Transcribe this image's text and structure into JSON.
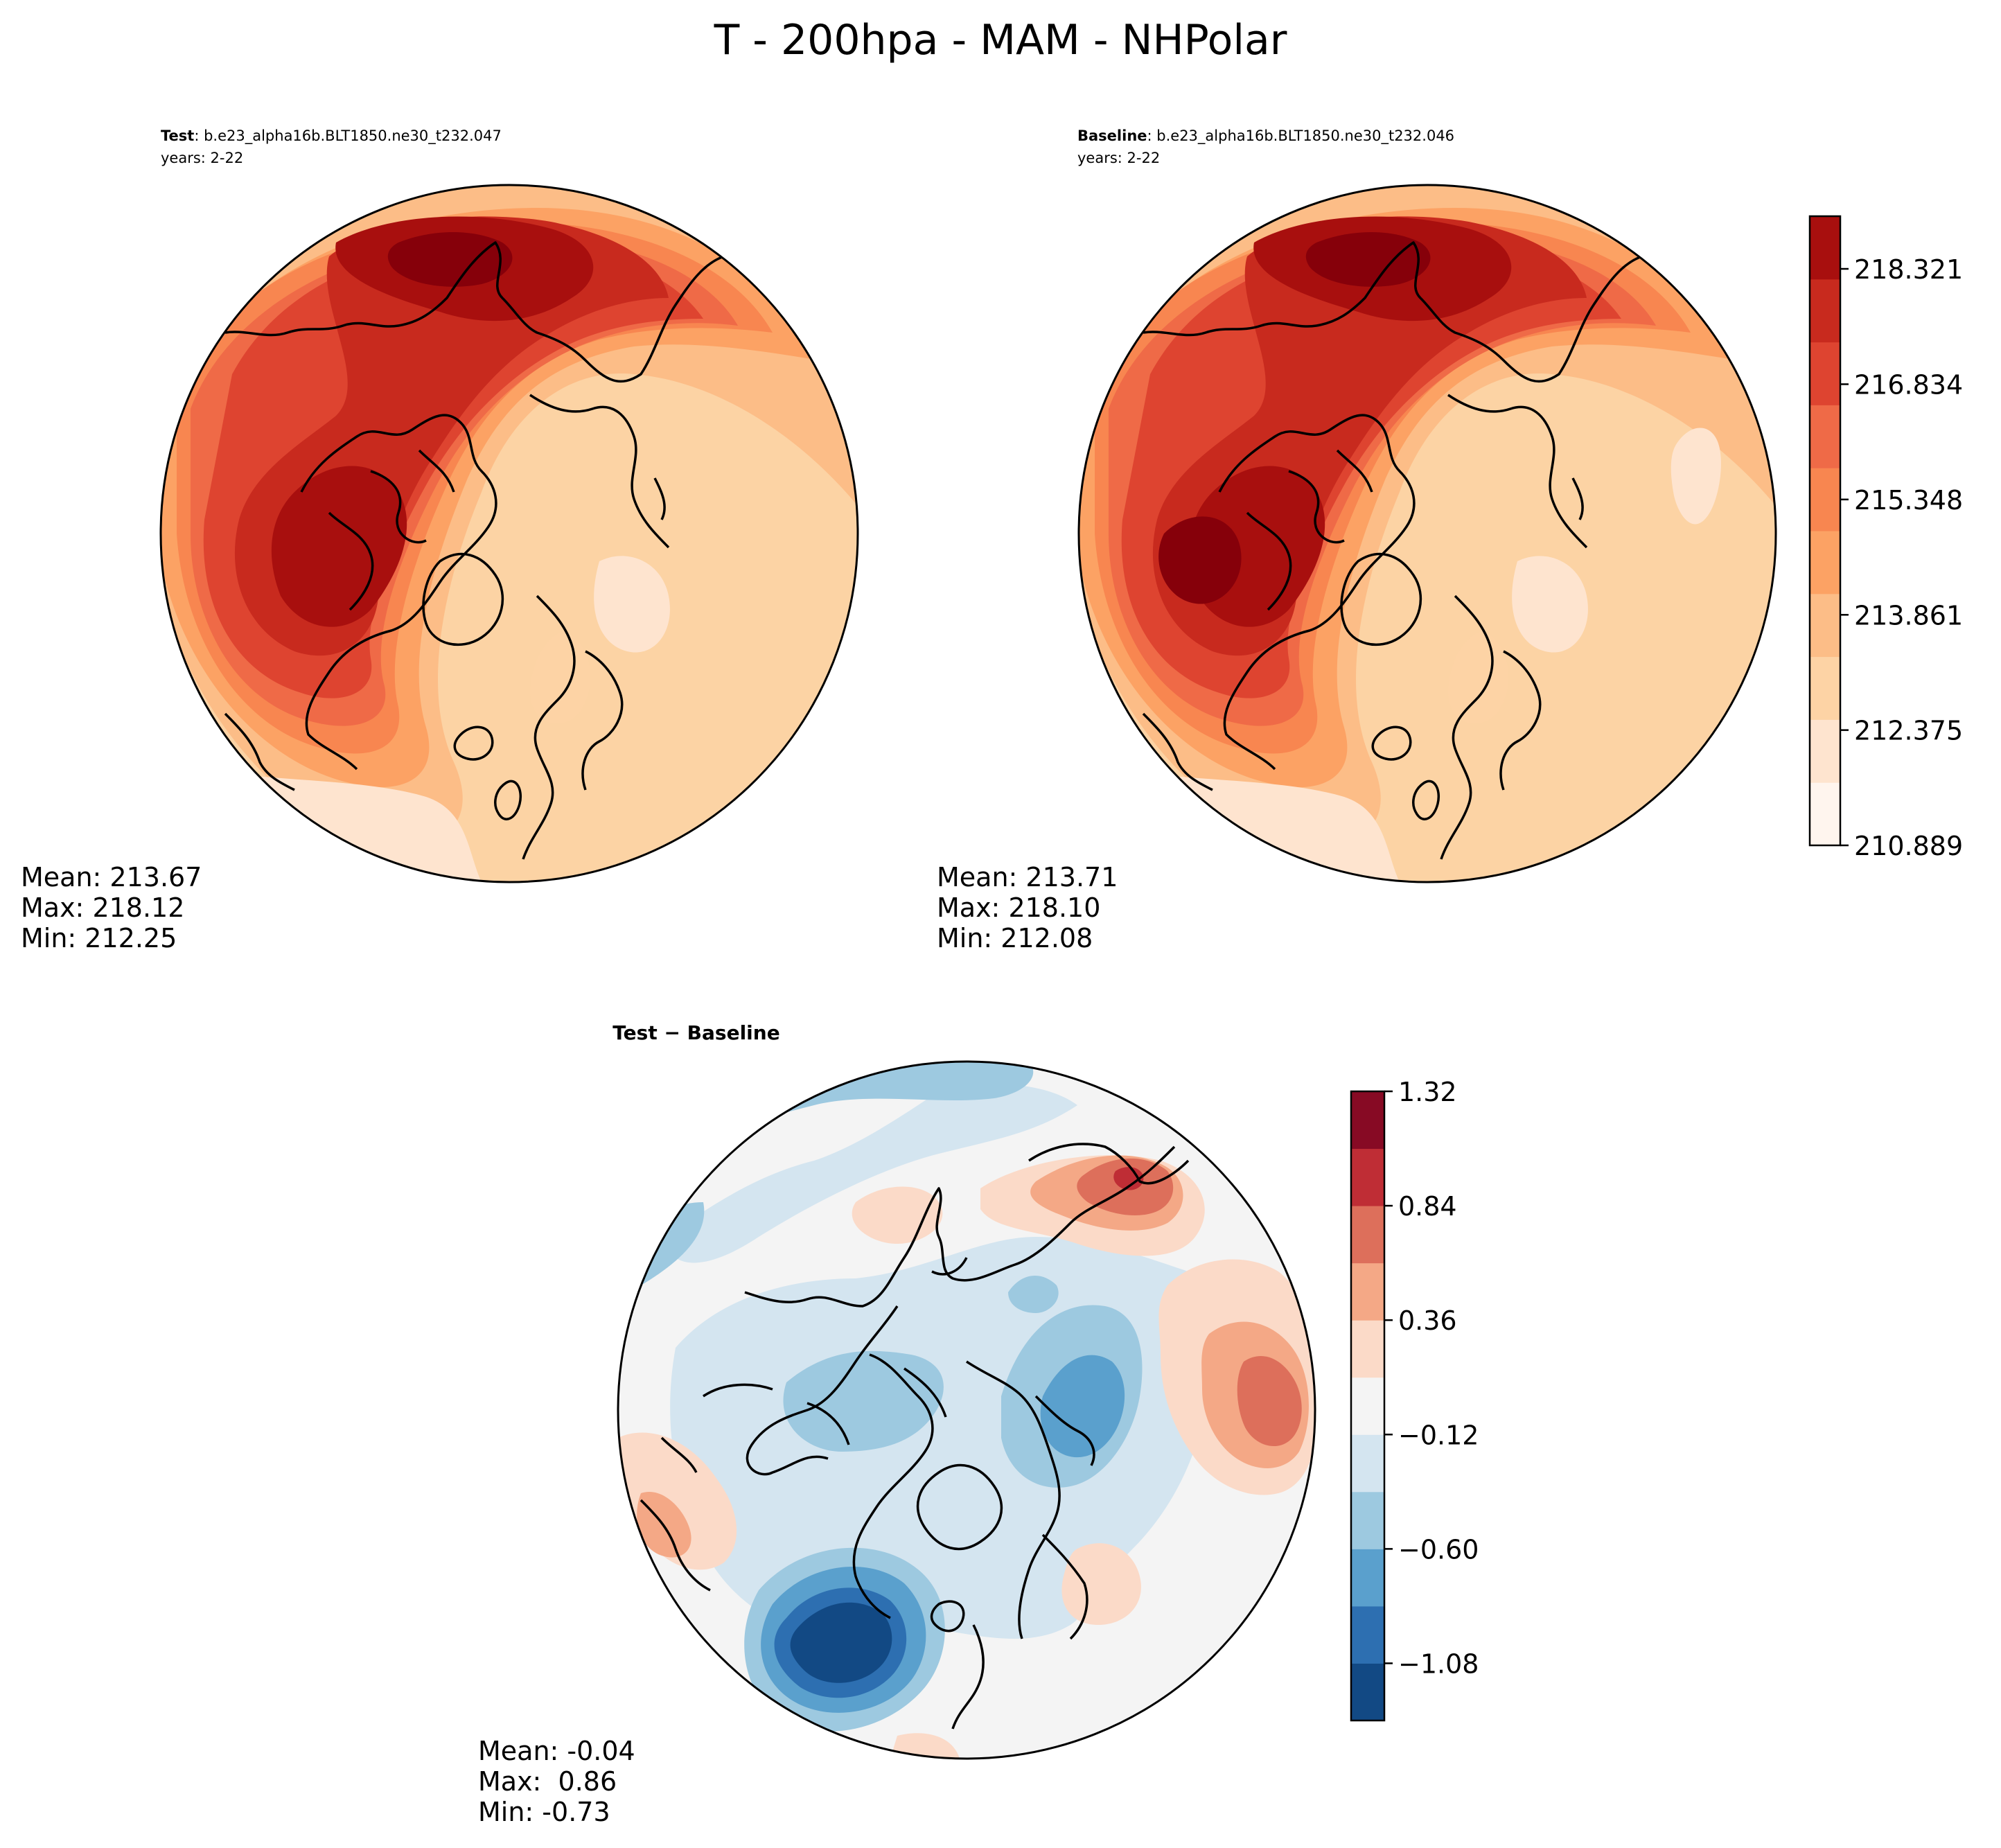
{
  "figure_title": "T - 200hpa - MAM - NHPolar",
  "colors": {
    "abs_levels": [
      "#fff5eb",
      "#fee6ce",
      "#fdd0a2",
      "#fdae6b",
      "#fd8d3c",
      "#f16913",
      "#e6550d",
      "#d94801",
      "#a63603",
      "#7f2704"
    ],
    "reds_scale": [
      "#fff5ee",
      "#fee4cf",
      "#fdd3a5",
      "#fcbd87",
      "#fca264",
      "#f88650",
      "#ef6a47",
      "#de4430",
      "#c82a1e",
      "#a80f0e",
      "#86000a"
    ],
    "diff_scale": [
      "#124984",
      "#2d6fb1",
      "#5aa0cd",
      "#9dc9e0",
      "#d4e5f0",
      "#f4f4f4",
      "#fbdac8",
      "#f4a886",
      "#dd6f5b",
      "#bf2d35",
      "#870a24"
    ],
    "coast": "#000000"
  },
  "chart_data": [
    {
      "panel": "test",
      "type": "polar_contour_map",
      "label_bold": "Test",
      "label_rest": ": b.e23_alpha16b.BLT1850.ne30_t232.047",
      "years": "years: 2-22",
      "stats": {
        "mean": "Mean: 213.67",
        "max": "Max: 218.12",
        "min": "Min: 212.25"
      }
    },
    {
      "panel": "baseline",
      "type": "polar_contour_map",
      "label_bold": "Baseline",
      "label_rest": ": b.e23_alpha16b.BLT1850.ne30_t232.046",
      "years": "years: 2-22",
      "stats": {
        "mean": "Mean: 213.71",
        "max": "Max: 218.10",
        "min": "Min: 212.08"
      },
      "colorbar": {
        "ticks": [
          218.321,
          216.834,
          215.348,
          213.861,
          212.375,
          210.889
        ],
        "tick_labels": [
          "218.321",
          "216.834",
          "215.348",
          "213.861",
          "212.375",
          "210.889"
        ],
        "range": [
          210.889,
          219.0
        ]
      }
    },
    {
      "panel": "difference",
      "type": "polar_contour_map",
      "label": "Test − Baseline",
      "stats": {
        "mean": "Mean: -0.04",
        "max": "Max:  0.86",
        "min": "Min: -0.73"
      },
      "colorbar": {
        "ticks": [
          1.32,
          0.84,
          0.36,
          -0.12,
          -0.6,
          -1.08
        ],
        "tick_labels": [
          "1.32",
          "0.84",
          "0.36",
          "−0.12",
          "−0.60",
          "−1.08"
        ],
        "range": [
          -1.32,
          1.32
        ]
      }
    }
  ]
}
